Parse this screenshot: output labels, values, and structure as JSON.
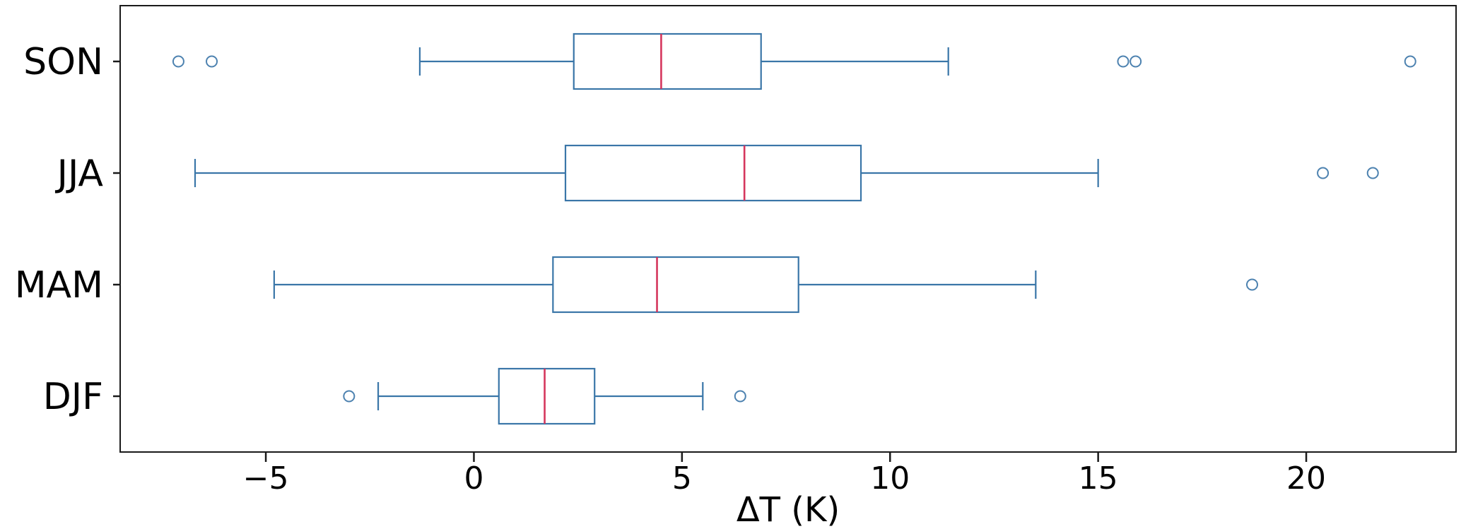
{
  "chart_data": {
    "type": "boxplot",
    "orientation": "horizontal",
    "title": "",
    "xlabel": "ΔT (K)",
    "ylabel": "",
    "xlim": [
      -8.5,
      23.6
    ],
    "x_ticks": [
      -5,
      0,
      5,
      10,
      15,
      20
    ],
    "grid": false,
    "legend": "none",
    "categories": [
      "SON",
      "JJA",
      "MAM",
      "DJF"
    ],
    "series": [
      {
        "name": "SON",
        "whisker_low": -1.3,
        "q1": 2.4,
        "median": 4.5,
        "q3": 6.9,
        "whisker_high": 11.4,
        "outliers": [
          -7.1,
          -6.3,
          15.6,
          15.9,
          22.5
        ]
      },
      {
        "name": "JJA",
        "whisker_low": -6.7,
        "q1": 2.2,
        "median": 6.5,
        "q3": 9.3,
        "whisker_high": 15.0,
        "outliers": [
          20.4,
          21.6
        ]
      },
      {
        "name": "MAM",
        "whisker_low": -4.8,
        "q1": 1.9,
        "median": 4.4,
        "q3": 7.8,
        "whisker_high": 13.5,
        "outliers": [
          18.7
        ]
      },
      {
        "name": "DJF",
        "whisker_low": -2.3,
        "q1": 0.6,
        "median": 1.7,
        "q3": 2.9,
        "whisker_high": 5.5,
        "outliers": [
          -3.0,
          6.4
        ]
      }
    ],
    "colors": {
      "box": "#3a76a8",
      "median": "#d5365c",
      "whisker": "#3a76a8",
      "outlier": "#4d82b0",
      "axis": "#1a1a1a",
      "text": "#000000",
      "background": "#ffffff"
    }
  }
}
